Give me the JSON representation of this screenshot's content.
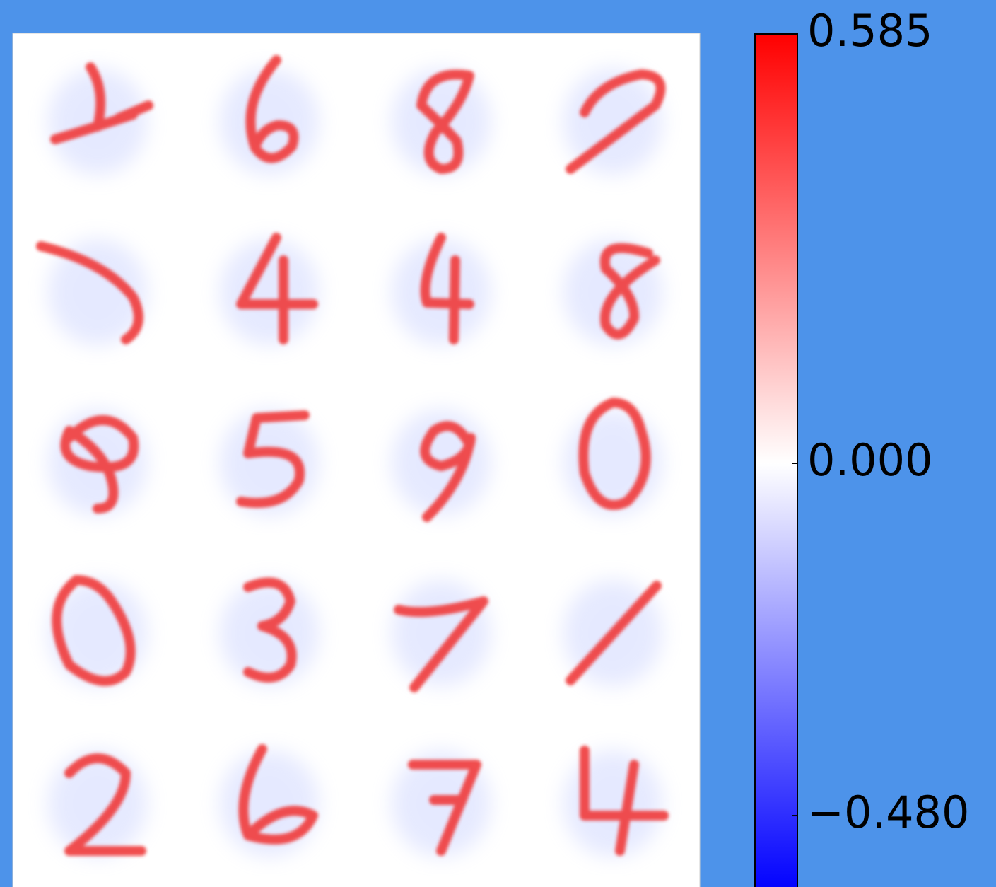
{
  "chart_data": {
    "type": "image",
    "colorbar": {
      "colors": [
        "#0000ff",
        "#ffffff",
        "#ff0000"
      ],
      "ylim": [
        -0.585,
        0.585
      ],
      "yticks": [
        {
          "value": 0.585,
          "label": "0.585"
        },
        {
          "value": 0,
          "label": "0.000"
        },
        {
          "value": -0.48,
          "label": "−0.480"
        }
      ]
    }
  }
}
